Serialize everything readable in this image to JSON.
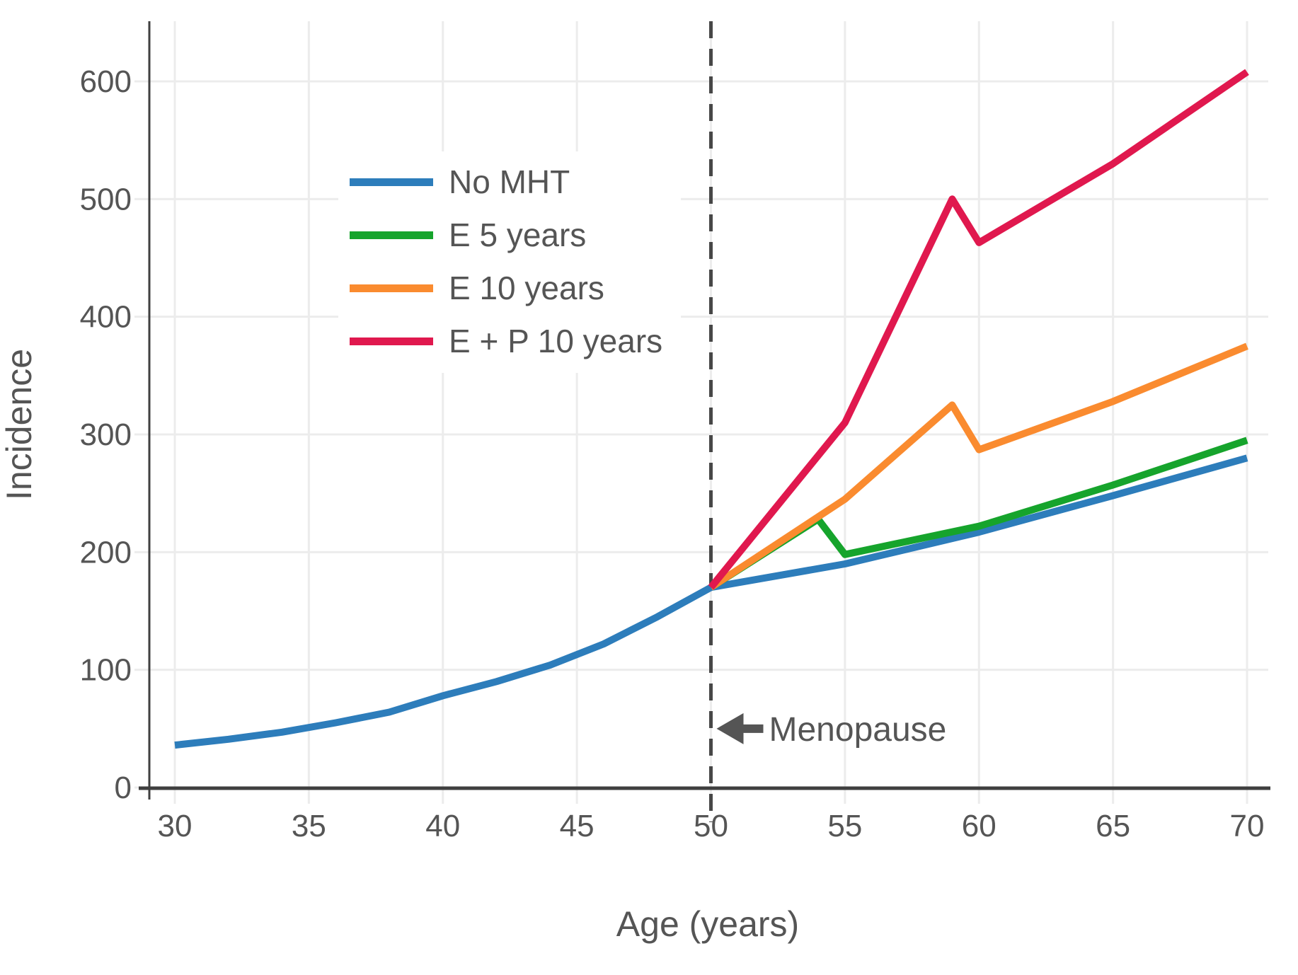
{
  "chart_data": {
    "type": "line",
    "title": "",
    "xlabel": "Age (years)",
    "ylabel": "Incidence",
    "xlim": [
      29,
      70.8
    ],
    "ylim": [
      0,
      650
    ],
    "xticks": [
      30,
      35,
      40,
      45,
      50,
      55,
      60,
      65,
      70
    ],
    "yticks": [
      0,
      100,
      200,
      300,
      400,
      500,
      600
    ],
    "grid": true,
    "legend_position": "upper-left-inside",
    "series": [
      {
        "name": "No MHT",
        "color": "#2d7dbb",
        "x": [
          30,
          32,
          34,
          36,
          38,
          40,
          42,
          44,
          46,
          48,
          50,
          55,
          60,
          65,
          70
        ],
        "y": [
          36,
          41,
          47,
          55,
          64,
          78,
          90,
          104,
          122,
          145,
          170,
          190,
          217,
          248,
          280
        ]
      },
      {
        "name": "E 5 years",
        "color": "#16a42c",
        "x": [
          50,
          54,
          55,
          60,
          65,
          70
        ],
        "y": [
          170,
          228,
          198,
          222,
          257,
          295
        ]
      },
      {
        "name": "E 10 years",
        "color": "#fa8b2f",
        "x": [
          50,
          55,
          59,
          60,
          65,
          70
        ],
        "y": [
          170,
          245,
          325,
          287,
          328,
          375
        ]
      },
      {
        "name": "E + P 10 years",
        "color": "#e0184e",
        "x": [
          50,
          55,
          59,
          60,
          65,
          70
        ],
        "y": [
          170,
          310,
          500,
          463,
          530,
          608
        ]
      }
    ],
    "vline": {
      "x": 50,
      "style": "dashed",
      "color": "#474747"
    },
    "annotation": {
      "label": "Menopause",
      "x": 50,
      "y": 50,
      "arrow": "left"
    }
  },
  "colors": {
    "grid": "#ececec",
    "axis": "#3f3f3f",
    "text": "#555555",
    "background": "#ffffff"
  }
}
